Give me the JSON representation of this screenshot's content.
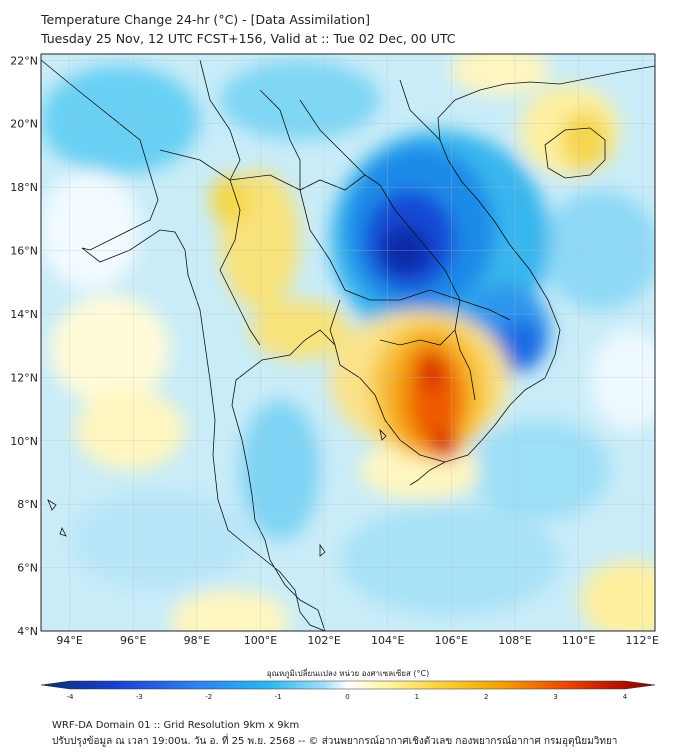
{
  "header": {
    "title_line1": "Temperature Change 24-hr (°C) - [Data Assimilation]",
    "title_line2": "Tuesday 25 Nov, 12 UTC FCST+156, Valid at :: Tue 02 Dec, 00 UTC"
  },
  "map": {
    "lat_labels": [
      "22°N",
      "20°N",
      "18°N",
      "16°N",
      "14°N",
      "12°N",
      "10°N",
      "8°N",
      "6°N",
      "4°N"
    ],
    "lon_labels": [
      "94°E",
      "96°E",
      "98°E",
      "100°E",
      "102°E",
      "104°E",
      "106°E",
      "108°E",
      "110°E",
      "112°E"
    ],
    "lat_range": [
      4,
      22.2
    ],
    "lon_range": [
      93.1,
      112.4
    ],
    "gridlines": true
  },
  "colorbar": {
    "label": "อุณหภูมิเปลี่ยนแปลง หน่วย องศาเซลเซียส (°C)",
    "ticks": [
      "-4",
      "-3",
      "-2",
      "-1",
      "0",
      "1",
      "2",
      "3",
      "4"
    ],
    "range": [
      -4,
      4
    ],
    "colors": [
      "#08306b",
      "#1a3fd1",
      "#2e7ff0",
      "#29b8f0",
      "#9de0f8",
      "#ffffff",
      "#fff6a8",
      "#f8d23a",
      "#f6a000",
      "#ee4a00",
      "#b81000",
      "#7a0000"
    ]
  },
  "footer": {
    "line1": "WRF-DA Domain 01 :: Grid Resolution 9km x 9km",
    "line2": "ปรับปรุงข้อมูล ณ เวลา 19:00น. วัน อ. ที่ 25 พ.ย. 2568 -- © ส่วนพยากรณ์อากาศเชิงตัวเลข กองพยากรณ์อากาศ กรมอุตุนิยมวิทยา"
  }
}
